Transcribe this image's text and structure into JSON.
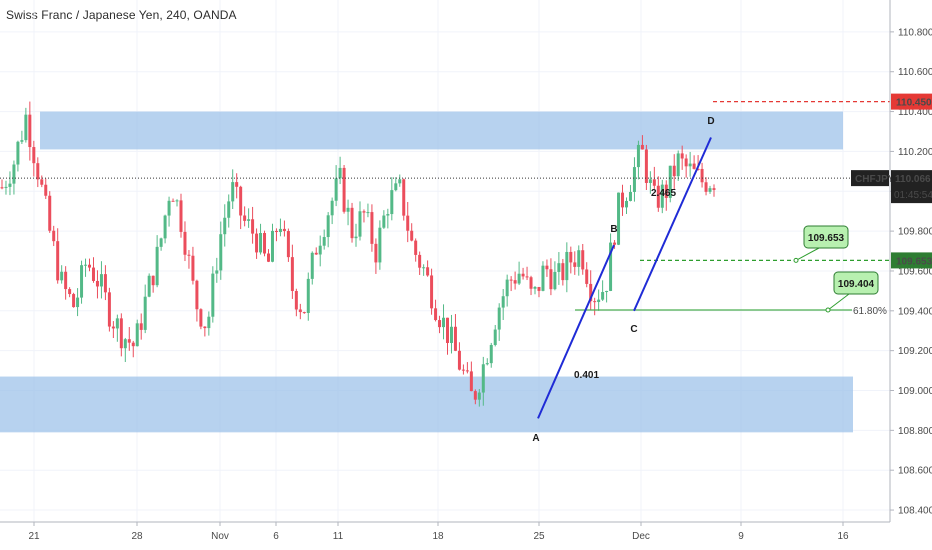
{
  "title": "Swiss Franc / Japanese Yen, 240, OANDA",
  "colors": {
    "up": "#53b987",
    "down": "#eb4d5c",
    "zone": "#9fc3ea",
    "pattern_line": "#1f2bd6",
    "red_level": "#e53935",
    "green_level": "#2e9e2e",
    "green_level_solid": "#4caf50",
    "badge_fill": "#b8f0b0",
    "badge_text": "#d32f2f"
  },
  "chart_data": {
    "type": "candlestick",
    "symbol": "CHFJPY",
    "timeframe": "240",
    "ylim": [
      108.34,
      110.96
    ],
    "y_ticks": [
      "110.800",
      "110.600",
      "110.400",
      "110.200",
      "110.000",
      "109.800",
      "109.600",
      "109.400",
      "109.200",
      "109.000",
      "108.800",
      "108.600",
      "108.400"
    ],
    "x_ticks": [
      "21",
      "28",
      "Nov",
      "6",
      "11",
      "18",
      "25",
      "Dec",
      "9",
      "16"
    ],
    "series_close_path": [
      110.02,
      110.15,
      110.38,
      110.1,
      109.78,
      109.52,
      109.42,
      109.65,
      109.55,
      109.38,
      109.28,
      109.22,
      109.48,
      109.7,
      110.05,
      109.82,
      109.45,
      109.32,
      109.75,
      110.02,
      109.85,
      109.78,
      109.62,
      109.88,
      109.52,
      109.4,
      109.72,
      109.9,
      110.05,
      109.8,
      109.88,
      109.7,
      109.95,
      110.0,
      109.72,
      109.6,
      109.42,
      109.28,
      109.12,
      108.95,
      109.15,
      109.4,
      109.55,
      109.6,
      109.45,
      109.62,
      109.55,
      109.65,
      109.7,
      109.48,
      109.52,
      109.9,
      110.05,
      110.2,
      109.95,
      110.0,
      110.15,
      110.1,
      110.05,
      110.06
    ],
    "current_price": "110.066",
    "countdown": "01:45:54",
    "zones": [
      {
        "from": 110.21,
        "to": 110.4
      },
      {
        "from": 108.79,
        "to": 109.07
      }
    ],
    "levels": [
      {
        "label": "110.450",
        "value": 110.45,
        "style": "dashed-red"
      },
      {
        "label": "109.653",
        "value": 109.653,
        "style": "dashed-green"
      },
      {
        "label": "109.404",
        "value": 109.404,
        "style": "solid-green",
        "fib": "61.80%"
      }
    ],
    "points": [
      {
        "label": "A",
        "value": 108.86
      },
      {
        "label": "B",
        "value": 109.73
      },
      {
        "label": "C",
        "value": 109.4
      },
      {
        "label": "D",
        "value": 110.27
      }
    ],
    "ratios": [
      {
        "label": "0.401"
      },
      {
        "label": "2.465"
      }
    ]
  }
}
